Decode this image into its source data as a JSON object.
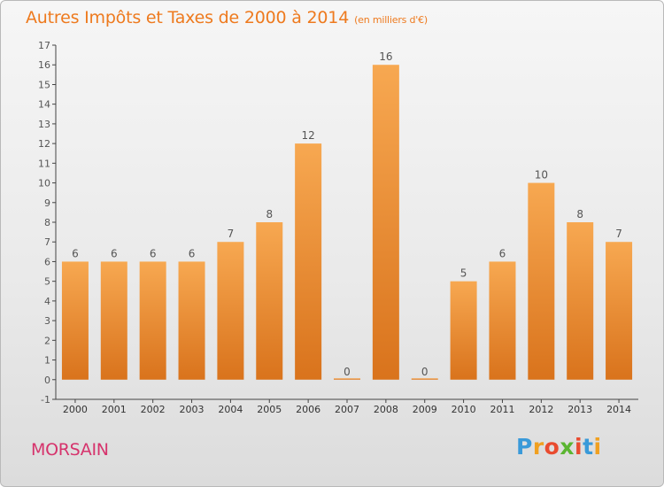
{
  "title": "Autres Impôts et Taxes de 2000 à 2014",
  "subtitle": "(en milliers d'€)",
  "commune": "MORSAIN",
  "logo": {
    "letters": [
      "P",
      "r",
      "o",
      "x",
      "i",
      "t",
      "i"
    ],
    "colors": [
      "#3a9ad9",
      "#f0a020",
      "#e94b2f",
      "#5bb531",
      "#e94b2f",
      "#3a9ad9",
      "#f0a020"
    ]
  },
  "colors": {
    "bar_top": "#f7a851",
    "bar_bottom": "#d9731c",
    "title": "#ee7a1e",
    "commune": "#d6336c"
  },
  "chart_data": {
    "type": "bar",
    "title": "Autres Impôts et Taxes de 2000 à 2014",
    "ylabel": "",
    "xlabel": "",
    "ylim": [
      -1,
      17
    ],
    "yticks": [
      -1,
      0,
      1,
      2,
      3,
      4,
      5,
      6,
      7,
      8,
      9,
      10,
      11,
      12,
      13,
      14,
      15,
      16,
      17
    ],
    "grid": false,
    "categories": [
      "2000",
      "2001",
      "2002",
      "2003",
      "2004",
      "2005",
      "2006",
      "2007",
      "2008",
      "2009",
      "2010",
      "2011",
      "2012",
      "2013",
      "2014"
    ],
    "values": [
      6,
      6,
      6,
      6,
      7,
      8,
      12,
      0,
      16,
      0,
      5,
      6,
      10,
      8,
      7
    ]
  }
}
